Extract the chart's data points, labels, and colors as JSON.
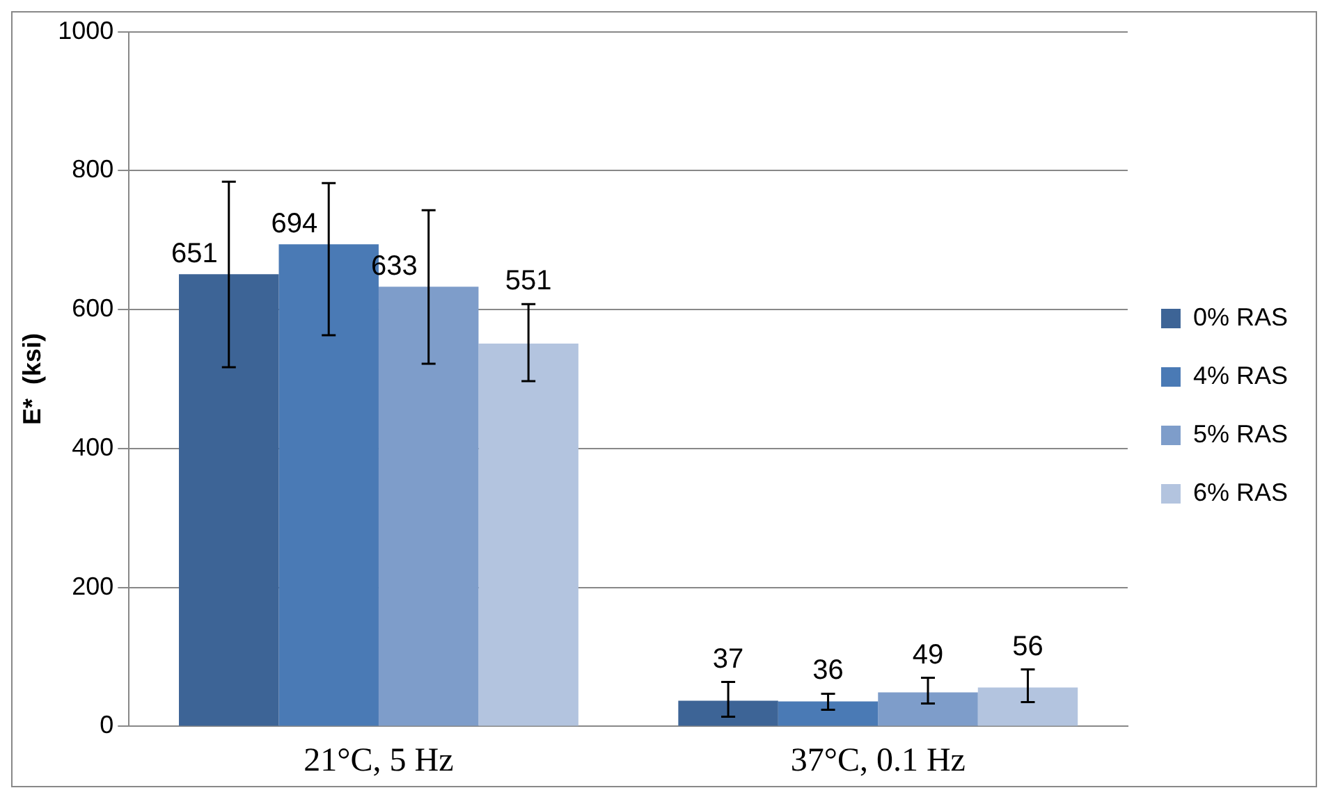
{
  "chart_data": {
    "type": "bar",
    "ylabel": "E*  (ksi)",
    "categories": [
      "21°C, 5 Hz",
      "37°C, 0.1 Hz"
    ],
    "series": [
      {
        "name": "0% RAS",
        "color": "#3d6496",
        "values": [
          651,
          37
        ],
        "errors": [
          [
            517,
            784
          ],
          [
            14,
            64
          ]
        ]
      },
      {
        "name": "4% RAS",
        "color": "#4a7ab5",
        "values": [
          694,
          36
        ],
        "errors": [
          [
            563,
            782
          ],
          [
            24,
            47
          ]
        ]
      },
      {
        "name": "5% RAS",
        "color": "#7e9dca",
        "values": [
          633,
          49
        ],
        "errors": [
          [
            522,
            743
          ],
          [
            33,
            70
          ]
        ]
      },
      {
        "name": "6% RAS",
        "color": "#b3c4df",
        "values": [
          551,
          56
        ],
        "errors": [
          [
            497,
            608
          ],
          [
            35,
            82
          ]
        ]
      }
    ],
    "ylim": [
      0,
      1000
    ],
    "yticks": [
      0,
      200,
      400,
      600,
      800,
      1000
    ],
    "grid": "y",
    "legend": "right",
    "data_labels": true
  }
}
